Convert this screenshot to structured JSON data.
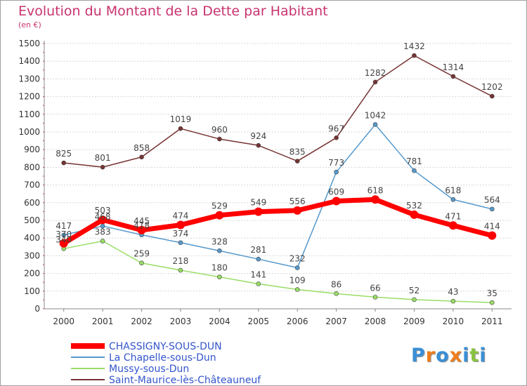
{
  "title": "Evolution du Montant de la Dette par Habitant",
  "unit": "(en €)",
  "logo": {
    "text": "Proxiti",
    "colors": [
      "#3a8fd6",
      "#f07d1b",
      "#3a8fd6",
      "#f07d1b",
      "#3a8fd6",
      "#8ac43f",
      "#3a8fd6"
    ]
  },
  "chart_data": {
    "type": "line",
    "title": "Evolution du Montant de la Dette par Habitant",
    "ylabel": "(en €)",
    "xlabel": "",
    "x": [
      "2000",
      "2001",
      "2002",
      "2003",
      "2004",
      "2005",
      "2006",
      "2007",
      "2008",
      "2009",
      "2010",
      "2011"
    ],
    "ylim": [
      0,
      1500
    ],
    "yticks": [
      0,
      100,
      200,
      300,
      400,
      500,
      600,
      700,
      800,
      900,
      1000,
      1100,
      1200,
      1300,
      1400,
      1500
    ],
    "grid": "horizontal",
    "legend_position": "bottom-left",
    "series": [
      {
        "name": "CHASSIGNY-SOUS-DUN",
        "color": "#ff0000",
        "values": [
          370,
          503,
          445,
          474,
          529,
          549,
          556,
          609,
          618,
          532,
          471,
          414
        ],
        "labels": [
          "370",
          "503",
          "445",
          "474",
          "529",
          "549",
          "556",
          "609",
          "618",
          "532",
          "471",
          "414"
        ],
        "bold": true
      },
      {
        "name": "La Chapelle-sous-Dun",
        "color": "#5599cc",
        "values": [
          417,
          468,
          418,
          374,
          328,
          281,
          232,
          773,
          1042,
          781,
          618,
          564
        ],
        "labels": [
          "417",
          "468",
          "418",
          "374",
          "328",
          "281",
          "232",
          "773",
          "1042",
          "781",
          "618",
          "564"
        ],
        "bold": false
      },
      {
        "name": "Mussy-sous-Dun",
        "color": "#99dd66",
        "values": [
          340,
          383,
          259,
          218,
          180,
          141,
          109,
          86,
          66,
          52,
          43,
          35
        ],
        "labels": [
          "340",
          "383",
          "259",
          "218",
          "180",
          "141",
          "109",
          "86",
          "66",
          "52",
          "43",
          "35"
        ],
        "bold": false
      },
      {
        "name": "Saint-Maurice-lès-Châteauneuf",
        "color": "#773333",
        "values": [
          825,
          801,
          858,
          1019,
          960,
          924,
          835,
          967,
          1282,
          1432,
          1314,
          1202
        ],
        "labels": [
          "825",
          "801",
          "858",
          "1019",
          "960",
          "924",
          "835",
          "967",
          "1282",
          "1432",
          "1314",
          "1202"
        ],
        "bold": false
      }
    ]
  }
}
